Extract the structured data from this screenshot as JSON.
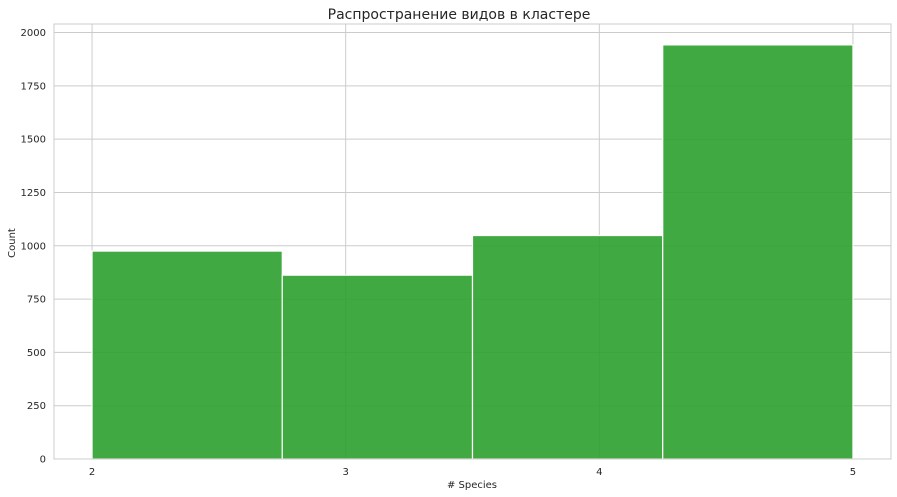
{
  "chart_data": {
    "type": "bar",
    "title": "Распространение видов в кластере",
    "xlabel": "# Species",
    "ylabel": "Count",
    "bins": [
      {
        "x0": 2.0,
        "x1": 2.75,
        "value": 975
      },
      {
        "x0": 2.75,
        "x1": 3.5,
        "value": 862
      },
      {
        "x0": 3.5,
        "x1": 4.25,
        "value": 1048
      },
      {
        "x0": 4.25,
        "x1": 5.0,
        "value": 1942
      }
    ],
    "xlim": [
      1.85,
      5.15
    ],
    "ylim": [
      0,
      2040
    ],
    "xticks": [
      2,
      3,
      4,
      5
    ],
    "yticks": [
      0,
      250,
      500,
      750,
      1000,
      1250,
      1500,
      1750,
      2000
    ],
    "grid": true,
    "bar_color": "#2ca02c",
    "grid_color": "#cccccc"
  }
}
